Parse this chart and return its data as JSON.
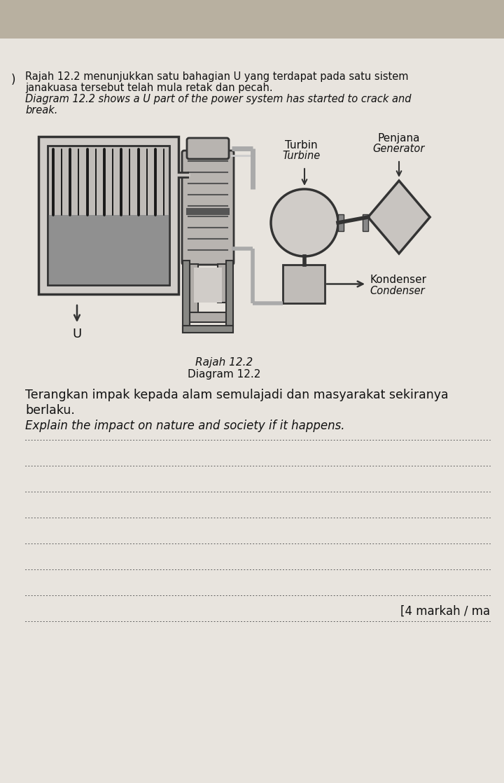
{
  "bg_top_color": "#c8c0b0",
  "bg_paper_color": "#e8e5df",
  "intro_line1": "Rajah 12.2 menunjukkan satu bahagian U yang terdapat pada satu sistem",
  "intro_line2": "janakuasa tersebut telah mula retak dan pecah.",
  "intro_line3": "Diagram 12.2 shows a U part of the power system has started to crack and",
  "intro_line4": "break.",
  "question_line1": "Terangkan impak kepada alam semulajadi dan masyarakat sekiranya",
  "question_line2": "berlaku.",
  "question_line3": "Explain the impact on nature and society if it happens.",
  "caption1": "Rajah 12.2",
  "caption2": "Diagram 12.2",
  "lbl_turbin": "Turbin",
  "lbl_turbine": "Turbine",
  "lbl_penjana": "Penjana",
  "lbl_generator": "Generator",
  "lbl_kondenser": "Kondenser",
  "lbl_condenser": "Condenser",
  "lbl_U": "U",
  "marks": "[4 markah / ma",
  "n_lines": 8,
  "tc": "#111111",
  "lc": "#333333",
  "fill_light": "#cccccc",
  "fill_mid": "#aaaaaa",
  "fill_dark": "#888888"
}
